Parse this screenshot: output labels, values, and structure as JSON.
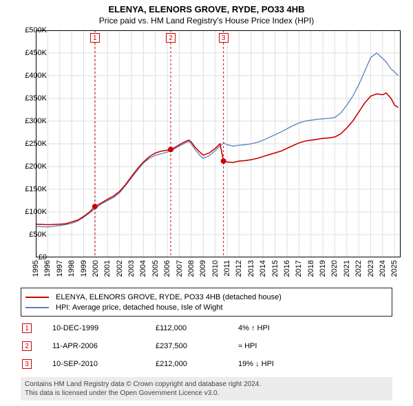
{
  "title_main": "ELENYA, ELENORS GROVE, RYDE, PO33 4HB",
  "title_sub": "Price paid vs. HM Land Registry's House Price Index (HPI)",
  "chart": {
    "background_color": "#ffffff",
    "border_color": "#000000",
    "grid_color": "#dddddd",
    "y": {
      "min": 0,
      "max": 500000,
      "step": 50000,
      "prefix": "£",
      "labels": [
        "£0",
        "£50K",
        "£100K",
        "£150K",
        "£200K",
        "£250K",
        "£300K",
        "£350K",
        "£400K",
        "£450K",
        "£500K"
      ]
    },
    "x": {
      "min": 1995,
      "max": 2025.5,
      "step": 1,
      "labels": [
        "1995",
        "1996",
        "1997",
        "1998",
        "1999",
        "2000",
        "2001",
        "2002",
        "2003",
        "2004",
        "2005",
        "2006",
        "2007",
        "2008",
        "2009",
        "2010",
        "2011",
        "2012",
        "2013",
        "2014",
        "2015",
        "2016",
        "2017",
        "2018",
        "2019",
        "2020",
        "2021",
        "2022",
        "2023",
        "2024",
        "2025"
      ]
    },
    "flags": [
      {
        "n": "1",
        "x": 1999.94
      },
      {
        "n": "2",
        "x": 2006.28
      },
      {
        "n": "3",
        "x": 2010.69
      }
    ],
    "flag_line_color": "#cc0000",
    "flag_dash": "3,3",
    "series": {
      "property": {
        "color": "#cc0000",
        "width": 1.6,
        "dots": [
          {
            "x": 1999.94,
            "y": 112000
          },
          {
            "x": 2006.28,
            "y": 237500
          },
          {
            "x": 2010.69,
            "y": 212000
          }
        ],
        "dot_radius": 4,
        "points": [
          [
            1995.0,
            73000
          ],
          [
            1996.0,
            72000
          ],
          [
            1997.0,
            73000
          ],
          [
            1997.5,
            74000
          ],
          [
            1998.0,
            78000
          ],
          [
            1998.5,
            82000
          ],
          [
            1999.0,
            90000
          ],
          [
            1999.5,
            100000
          ],
          [
            1999.94,
            112000
          ],
          [
            2000.5,
            120000
          ],
          [
            2001.0,
            128000
          ],
          [
            2001.5,
            135000
          ],
          [
            2002.0,
            145000
          ],
          [
            2002.5,
            160000
          ],
          [
            2003.0,
            178000
          ],
          [
            2003.5,
            195000
          ],
          [
            2004.0,
            210000
          ],
          [
            2004.5,
            222000
          ],
          [
            2005.0,
            230000
          ],
          [
            2005.5,
            234000
          ],
          [
            2006.0,
            236000
          ],
          [
            2006.28,
            237500
          ],
          [
            2006.5,
            240000
          ],
          [
            2007.0,
            248000
          ],
          [
            2007.5,
            255000
          ],
          [
            2007.8,
            258000
          ],
          [
            2008.0,
            254000
          ],
          [
            2008.3,
            243000
          ],
          [
            2008.7,
            232000
          ],
          [
            2009.0,
            225000
          ],
          [
            2009.5,
            230000
          ],
          [
            2010.0,
            240000
          ],
          [
            2010.4,
            250000
          ],
          [
            2010.7,
            212000
          ],
          [
            2011.0,
            210000
          ],
          [
            2011.5,
            209000
          ],
          [
            2012.0,
            212000
          ],
          [
            2012.5,
            213000
          ],
          [
            2013.0,
            215000
          ],
          [
            2013.5,
            218000
          ],
          [
            2014.0,
            222000
          ],
          [
            2014.5,
            226000
          ],
          [
            2015.0,
            230000
          ],
          [
            2015.5,
            234000
          ],
          [
            2016.0,
            240000
          ],
          [
            2016.5,
            246000
          ],
          [
            2017.0,
            252000
          ],
          [
            2017.5,
            256000
          ],
          [
            2018.0,
            258000
          ],
          [
            2018.5,
            260000
          ],
          [
            2019.0,
            262000
          ],
          [
            2019.5,
            263000
          ],
          [
            2020.0,
            265000
          ],
          [
            2020.5,
            272000
          ],
          [
            2021.0,
            285000
          ],
          [
            2021.5,
            300000
          ],
          [
            2022.0,
            320000
          ],
          [
            2022.5,
            340000
          ],
          [
            2023.0,
            355000
          ],
          [
            2023.5,
            360000
          ],
          [
            2024.0,
            358000
          ],
          [
            2024.3,
            362000
          ],
          [
            2024.7,
            350000
          ],
          [
            2025.0,
            335000
          ],
          [
            2025.3,
            330000
          ]
        ]
      },
      "hpi": {
        "color": "#5a7fc0",
        "width": 1.3,
        "points": [
          [
            1995.0,
            68000
          ],
          [
            1996.0,
            67000
          ],
          [
            1997.0,
            70000
          ],
          [
            1997.5,
            72000
          ],
          [
            1998.0,
            75000
          ],
          [
            1998.5,
            80000
          ],
          [
            1999.0,
            88000
          ],
          [
            1999.5,
            98000
          ],
          [
            1999.94,
            107000
          ],
          [
            2000.5,
            118000
          ],
          [
            2001.0,
            125000
          ],
          [
            2001.5,
            132000
          ],
          [
            2002.0,
            142000
          ],
          [
            2002.5,
            158000
          ],
          [
            2003.0,
            175000
          ],
          [
            2003.5,
            192000
          ],
          [
            2004.0,
            208000
          ],
          [
            2004.5,
            218000
          ],
          [
            2005.0,
            225000
          ],
          [
            2005.5,
            228000
          ],
          [
            2006.0,
            232000
          ],
          [
            2006.28,
            235000
          ],
          [
            2006.5,
            238000
          ],
          [
            2007.0,
            245000
          ],
          [
            2007.5,
            252000
          ],
          [
            2007.8,
            255000
          ],
          [
            2008.0,
            250000
          ],
          [
            2008.3,
            238000
          ],
          [
            2008.7,
            225000
          ],
          [
            2009.0,
            218000
          ],
          [
            2009.5,
            224000
          ],
          [
            2010.0,
            235000
          ],
          [
            2010.4,
            245000
          ],
          [
            2010.7,
            252000
          ],
          [
            2011.0,
            248000
          ],
          [
            2011.5,
            245000
          ],
          [
            2012.0,
            247000
          ],
          [
            2012.5,
            248000
          ],
          [
            2013.0,
            250000
          ],
          [
            2013.5,
            253000
          ],
          [
            2014.0,
            258000
          ],
          [
            2014.5,
            264000
          ],
          [
            2015.0,
            270000
          ],
          [
            2015.5,
            276000
          ],
          [
            2016.0,
            283000
          ],
          [
            2016.5,
            290000
          ],
          [
            2017.0,
            296000
          ],
          [
            2017.5,
            300000
          ],
          [
            2018.0,
            302000
          ],
          [
            2018.5,
            304000
          ],
          [
            2019.0,
            305000
          ],
          [
            2019.5,
            306000
          ],
          [
            2020.0,
            308000
          ],
          [
            2020.5,
            318000
          ],
          [
            2021.0,
            335000
          ],
          [
            2021.5,
            355000
          ],
          [
            2022.0,
            380000
          ],
          [
            2022.5,
            410000
          ],
          [
            2023.0,
            440000
          ],
          [
            2023.5,
            450000
          ],
          [
            2024.0,
            438000
          ],
          [
            2024.3,
            430000
          ],
          [
            2024.7,
            415000
          ],
          [
            2025.0,
            408000
          ],
          [
            2025.3,
            400000
          ]
        ]
      }
    }
  },
  "legend": {
    "items": [
      {
        "color": "#cc0000",
        "label": "ELENYA, ELENORS GROVE, RYDE, PO33 4HB (detached house)"
      },
      {
        "color": "#5a7fc0",
        "label": "HPI: Average price, detached house, Isle of Wight"
      }
    ]
  },
  "transactions": [
    {
      "n": "1",
      "date": "10-DEC-1999",
      "price": "£112,000",
      "diff": "4% ↑ HPI"
    },
    {
      "n": "2",
      "date": "11-APR-2006",
      "price": "£237,500",
      "diff": "≈ HPI"
    },
    {
      "n": "3",
      "date": "10-SEP-2010",
      "price": "£212,000",
      "diff": "19% ↓ HPI"
    }
  ],
  "license_line1": "Contains HM Land Registry data © Crown copyright and database right 2024.",
  "license_line2": "This data is licensed under the Open Government Licence v3.0."
}
